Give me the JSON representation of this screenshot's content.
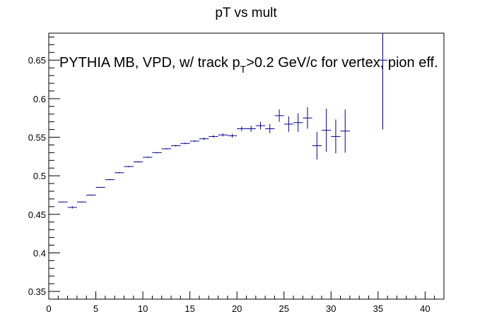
{
  "chart_data": {
    "type": "scatter",
    "title": "pT vs mult",
    "annotation": {
      "before": "PYTHIA MB, VPD, w/ track p",
      "subscript": "T",
      "after": ">0.2 GeV/c for vertex, pion eff."
    },
    "xlabel": "",
    "ylabel": "",
    "xlim": [
      0,
      42
    ],
    "ylim": [
      0.34,
      0.685
    ],
    "x_ticks": [
      0,
      5,
      10,
      15,
      20,
      25,
      30,
      35,
      40
    ],
    "y_ticks": [
      0.35,
      0.4,
      0.45,
      0.5,
      0.55,
      0.6,
      0.65
    ],
    "series": [
      {
        "color": "#00008b",
        "points": [
          {
            "x": 1.5,
            "y": 0.466,
            "err": 0.0005
          },
          {
            "x": 2.5,
            "y": 0.459,
            "err": 0.0015
          },
          {
            "x": 3.5,
            "y": 0.466,
            "err": 0.0005
          },
          {
            "x": 4.5,
            "y": 0.475,
            "err": 0.0005
          },
          {
            "x": 5.5,
            "y": 0.485,
            "err": 0.0005
          },
          {
            "x": 6.5,
            "y": 0.495,
            "err": 0.0008
          },
          {
            "x": 7.5,
            "y": 0.504,
            "err": 0.0008
          },
          {
            "x": 8.5,
            "y": 0.512,
            "err": 0.0008
          },
          {
            "x": 9.5,
            "y": 0.518,
            "err": 0.0008
          },
          {
            "x": 10.5,
            "y": 0.524,
            "err": 0.0008
          },
          {
            "x": 11.5,
            "y": 0.53,
            "err": 0.0008
          },
          {
            "x": 12.5,
            "y": 0.535,
            "err": 0.0008
          },
          {
            "x": 13.5,
            "y": 0.539,
            "err": 0.001
          },
          {
            "x": 14.5,
            "y": 0.542,
            "err": 0.001
          },
          {
            "x": 15.5,
            "y": 0.545,
            "err": 0.001
          },
          {
            "x": 16.5,
            "y": 0.548,
            "err": 0.0015
          },
          {
            "x": 17.5,
            "y": 0.551,
            "err": 0.0015
          },
          {
            "x": 18.5,
            "y": 0.553,
            "err": 0.002
          },
          {
            "x": 19.5,
            "y": 0.552,
            "err": 0.0025
          },
          {
            "x": 20.5,
            "y": 0.561,
            "err": 0.003
          },
          {
            "x": 21.5,
            "y": 0.561,
            "err": 0.004
          },
          {
            "x": 22.5,
            "y": 0.565,
            "err": 0.005
          },
          {
            "x": 23.5,
            "y": 0.561,
            "err": 0.006
          },
          {
            "x": 24.5,
            "y": 0.578,
            "err": 0.008
          },
          {
            "x": 25.5,
            "y": 0.567,
            "err": 0.01
          },
          {
            "x": 26.5,
            "y": 0.569,
            "err": 0.012
          },
          {
            "x": 27.5,
            "y": 0.575,
            "err": 0.014
          },
          {
            "x": 28.5,
            "y": 0.539,
            "err": 0.018
          },
          {
            "x": 29.5,
            "y": 0.559,
            "err": 0.028
          },
          {
            "x": 30.5,
            "y": 0.551,
            "err": 0.022
          },
          {
            "x": 31.5,
            "y": 0.558,
            "err": 0.028
          },
          {
            "x": 35.5,
            "y": 0.65,
            "err": 0.09
          }
        ]
      }
    ]
  }
}
